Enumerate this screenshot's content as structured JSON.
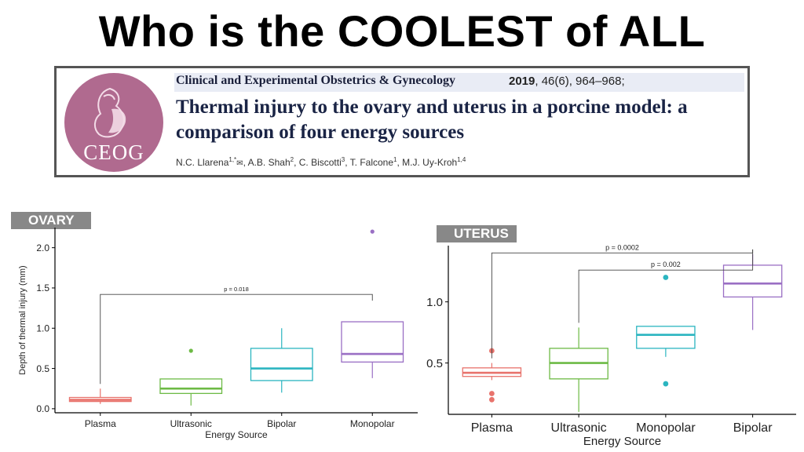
{
  "slide": {
    "title": "Who is the COOLEST of ALL"
  },
  "paper": {
    "logo_text": "CEOG",
    "journal": "Clinical and Experimental Obstetrics & Gynecology",
    "year": "2019",
    "volume": ", 46(6), 964–968;",
    "title": "Thermal injury to the ovary and uterus in a porcine model: a comparison of four energy sources",
    "authors": [
      {
        "name": "N.C. Llarena",
        "sup": "1,*"
      },
      {
        "name": "A.B. Shah",
        "sup": "2"
      },
      {
        "name": "C. Biscotti",
        "sup": "3"
      },
      {
        "name": "T. Falcone",
        "sup": "1"
      },
      {
        "name": "M.J. Uy-Kroh",
        "sup": "1,4"
      }
    ]
  },
  "chart_data": [
    {
      "type": "box",
      "title": "OVARY",
      "xlabel": "Energy Source",
      "ylabel": "Depth of thermal injury (mm)",
      "ylim": [
        -0.05,
        2.25
      ],
      "yticks": [
        "0.0",
        "0.5",
        "1.0",
        "1.5",
        "2.0"
      ],
      "categories": [
        "Plasma",
        "Ultrasonic",
        "Bipolar",
        "Monopolar"
      ],
      "colors": [
        "#e8736c",
        "#6dba45",
        "#2bb5c0",
        "#9a6fc4"
      ],
      "boxes": [
        {
          "whisker_low": 0.06,
          "q1": 0.09,
          "median": 0.11,
          "q3": 0.14,
          "whisker_high": 0.25,
          "outliers": []
        },
        {
          "whisker_low": 0.04,
          "q1": 0.19,
          "median": 0.25,
          "q3": 0.37,
          "whisker_high": 0.37,
          "outliers": [
            0.72
          ]
        },
        {
          "whisker_low": 0.2,
          "q1": 0.35,
          "median": 0.5,
          "q3": 0.75,
          "whisker_high": 1.0,
          "outliers": []
        },
        {
          "whisker_low": 0.38,
          "q1": 0.58,
          "median": 0.68,
          "q3": 1.08,
          "whisker_high": 1.08,
          "outliers": [
            2.2
          ]
        }
      ],
      "brackets": [
        {
          "from": 0,
          "to": 3,
          "y": 1.42,
          "label": "p = 0.018"
        }
      ]
    },
    {
      "type": "box",
      "title": "UTERUS",
      "xlabel": "Energy Source",
      "ylabel": "",
      "ylim": [
        0.08,
        1.46
      ],
      "yticks": [
        "0.5",
        "1.0"
      ],
      "categories": [
        "Plasma",
        "Ultrasonic",
        "Monopolar",
        "Bipolar"
      ],
      "colors": [
        "#e8736c",
        "#6dba45",
        "#2bb5c0",
        "#9a6fc4"
      ],
      "boxes": [
        {
          "whisker_low": 0.36,
          "q1": 0.39,
          "median": 0.42,
          "q3": 0.46,
          "whisker_high": 0.5,
          "outliers": [
            0.6,
            0.25,
            0.2
          ]
        },
        {
          "whisker_low": 0.1,
          "q1": 0.37,
          "median": 0.5,
          "q3": 0.62,
          "whisker_high": 0.79,
          "outliers": []
        },
        {
          "whisker_low": 0.55,
          "q1": 0.62,
          "median": 0.73,
          "q3": 0.8,
          "whisker_high": 0.8,
          "outliers": [
            1.2,
            0.33
          ]
        },
        {
          "whisker_low": 0.77,
          "q1": 1.04,
          "median": 1.15,
          "q3": 1.3,
          "whisker_high": 1.39,
          "outliers": []
        }
      ],
      "brackets": [
        {
          "from": 0,
          "to": 3,
          "y": 1.4,
          "label": "p = 0.0002"
        },
        {
          "from": 1,
          "to": 3,
          "y": 1.26,
          "label": "p = 0.002"
        }
      ]
    }
  ]
}
